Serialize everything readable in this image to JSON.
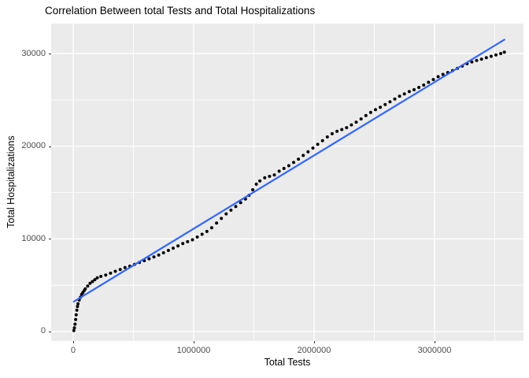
{
  "chart_data": {
    "type": "scatter",
    "title": "Correlation Between total Tests and Total Hospitalizations",
    "xlabel": "Total Tests",
    "ylabel": "Total Hospitalizations",
    "x_ticks": [
      0,
      1000000,
      2000000,
      3000000
    ],
    "x_tick_labels": [
      "0",
      "1000000",
      "2000000",
      "3000000"
    ],
    "y_ticks": [
      0,
      10000,
      20000,
      30000
    ],
    "y_tick_labels": [
      "0",
      "10000",
      "20000",
      "30000"
    ],
    "x_minor": [
      500000,
      1500000,
      2500000,
      3500000
    ],
    "y_minor": [
      5000,
      15000,
      25000
    ],
    "xlim": [
      -183000,
      3738600
    ],
    "ylim": [
      -1020,
      33230
    ],
    "grid": true,
    "legend_position": "none",
    "panel_bg": "#EBEBEB",
    "grid_color": "#FFFFFF",
    "point_color": "#000000",
    "line_color": "#3366FF",
    "trend_line": {
      "x1": 5000,
      "y1": 3230,
      "x2": 3580000,
      "y2": 31500
    },
    "points": [
      [
        5000,
        100
      ],
      [
        10000,
        400
      ],
      [
        15000,
        800
      ],
      [
        20000,
        1300
      ],
      [
        25000,
        1800
      ],
      [
        30000,
        2300
      ],
      [
        35000,
        2700
      ],
      [
        40000,
        3000
      ],
      [
        50000,
        3400
      ],
      [
        60000,
        3700
      ],
      [
        70000,
        4000
      ],
      [
        80000,
        4200
      ],
      [
        90000,
        4400
      ],
      [
        100000,
        4600
      ],
      [
        120000,
        4900
      ],
      [
        140000,
        5200
      ],
      [
        160000,
        5400
      ],
      [
        180000,
        5600
      ],
      [
        200000,
        5800
      ],
      [
        230000,
        5950
      ],
      [
        270000,
        6100
      ],
      [
        310000,
        6300
      ],
      [
        350000,
        6500
      ],
      [
        390000,
        6700
      ],
      [
        430000,
        6900
      ],
      [
        470000,
        7050
      ],
      [
        510000,
        7250
      ],
      [
        550000,
        7450
      ],
      [
        590000,
        7650
      ],
      [
        630000,
        7850
      ],
      [
        670000,
        8050
      ],
      [
        710000,
        8250
      ],
      [
        750000,
        8500
      ],
      [
        790000,
        8750
      ],
      [
        830000,
        9000
      ],
      [
        870000,
        9250
      ],
      [
        910000,
        9500
      ],
      [
        950000,
        9700
      ],
      [
        990000,
        9900
      ],
      [
        1030000,
        10200
      ],
      [
        1070000,
        10500
      ],
      [
        1110000,
        10800
      ],
      [
        1150000,
        11200
      ],
      [
        1190000,
        11700
      ],
      [
        1230000,
        12200
      ],
      [
        1270000,
        12700
      ],
      [
        1310000,
        13100
      ],
      [
        1350000,
        13500
      ],
      [
        1390000,
        13900
      ],
      [
        1430000,
        14300
      ],
      [
        1460000,
        14700
      ],
      [
        1490000,
        15300
      ],
      [
        1520000,
        15900
      ],
      [
        1550000,
        16250
      ],
      [
        1590000,
        16600
      ],
      [
        1630000,
        16750
      ],
      [
        1670000,
        16900
      ],
      [
        1710000,
        17300
      ],
      [
        1750000,
        17600
      ],
      [
        1790000,
        17900
      ],
      [
        1830000,
        18250
      ],
      [
        1870000,
        18600
      ],
      [
        1910000,
        19000
      ],
      [
        1950000,
        19400
      ],
      [
        1990000,
        19800
      ],
      [
        2030000,
        20200
      ],
      [
        2070000,
        20600
      ],
      [
        2110000,
        21000
      ],
      [
        2150000,
        21350
      ],
      [
        2190000,
        21600
      ],
      [
        2230000,
        21800
      ],
      [
        2270000,
        22000
      ],
      [
        2310000,
        22300
      ],
      [
        2350000,
        22600
      ],
      [
        2390000,
        22950
      ],
      [
        2430000,
        23300
      ],
      [
        2470000,
        23650
      ],
      [
        2510000,
        23950
      ],
      [
        2550000,
        24200
      ],
      [
        2590000,
        24500
      ],
      [
        2630000,
        24800
      ],
      [
        2670000,
        25100
      ],
      [
        2710000,
        25400
      ],
      [
        2750000,
        25650
      ],
      [
        2790000,
        25900
      ],
      [
        2830000,
        26100
      ],
      [
        2870000,
        26350
      ],
      [
        2910000,
        26600
      ],
      [
        2950000,
        26900
      ],
      [
        2990000,
        27200
      ],
      [
        3030000,
        27500
      ],
      [
        3070000,
        27750
      ],
      [
        3110000,
        27950
      ],
      [
        3150000,
        28150
      ],
      [
        3190000,
        28400
      ],
      [
        3230000,
        28650
      ],
      [
        3270000,
        28900
      ],
      [
        3310000,
        29100
      ],
      [
        3350000,
        29250
      ],
      [
        3390000,
        29400
      ],
      [
        3430000,
        29550
      ],
      [
        3470000,
        29700
      ],
      [
        3510000,
        29850
      ],
      [
        3550000,
        30000
      ],
      [
        3580000,
        30150
      ]
    ]
  }
}
